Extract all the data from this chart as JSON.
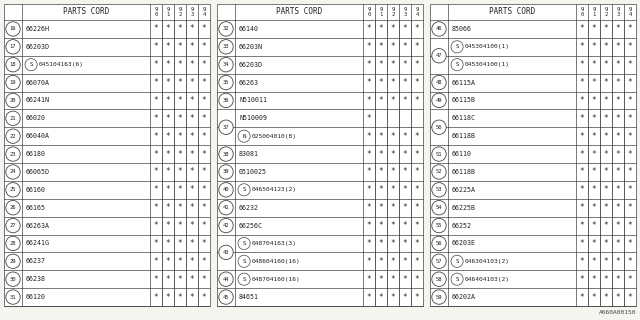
{
  "bg_color": "#f5f5f0",
  "border_color": "#555555",
  "text_color": "#222222",
  "watermark": "A660A00150",
  "col_headers": [
    "9\n0",
    "9\n1",
    "9\n2",
    "9\n3",
    "9\n4"
  ],
  "tables": [
    {
      "rows": [
        {
          "num": "16",
          "part": "66226H",
          "special": null,
          "stars": [
            1,
            1,
            1,
            1,
            1
          ]
        },
        {
          "num": "17",
          "part": "66203D",
          "special": null,
          "stars": [
            1,
            1,
            1,
            1,
            1
          ]
        },
        {
          "num": "18",
          "part": "045104163(6)",
          "special": "S",
          "stars": [
            1,
            1,
            1,
            1,
            1
          ]
        },
        {
          "num": "19",
          "part": "66070A",
          "special": null,
          "stars": [
            1,
            1,
            1,
            1,
            1
          ]
        },
        {
          "num": "20",
          "part": "66241N",
          "special": null,
          "stars": [
            1,
            1,
            1,
            1,
            1
          ]
        },
        {
          "num": "21",
          "part": "66020",
          "special": null,
          "stars": [
            1,
            1,
            1,
            1,
            1
          ]
        },
        {
          "num": "22",
          "part": "66040A",
          "special": null,
          "stars": [
            1,
            1,
            1,
            1,
            1
          ]
        },
        {
          "num": "23",
          "part": "66180",
          "special": null,
          "stars": [
            1,
            1,
            1,
            1,
            1
          ]
        },
        {
          "num": "24",
          "part": "66065D",
          "special": null,
          "stars": [
            1,
            1,
            1,
            1,
            1
          ]
        },
        {
          "num": "25",
          "part": "66160",
          "special": null,
          "stars": [
            1,
            1,
            1,
            1,
            1
          ]
        },
        {
          "num": "26",
          "part": "66165",
          "special": null,
          "stars": [
            1,
            1,
            1,
            1,
            1
          ]
        },
        {
          "num": "27",
          "part": "66263A",
          "special": null,
          "stars": [
            1,
            1,
            1,
            1,
            1
          ]
        },
        {
          "num": "28",
          "part": "66241G",
          "special": null,
          "stars": [
            1,
            1,
            1,
            1,
            1
          ]
        },
        {
          "num": "29",
          "part": "66237",
          "special": null,
          "stars": [
            1,
            1,
            1,
            1,
            1
          ]
        },
        {
          "num": "30",
          "part": "66238",
          "special": null,
          "stars": [
            1,
            1,
            1,
            1,
            1
          ]
        },
        {
          "num": "31",
          "part": "66120",
          "special": null,
          "stars": [
            1,
            1,
            1,
            1,
            1
          ]
        }
      ]
    },
    {
      "rows": [
        {
          "num": "32",
          "part": "66140",
          "special": null,
          "stars": [
            1,
            1,
            1,
            1,
            1
          ],
          "merge_top": false
        },
        {
          "num": "33",
          "part": "66203N",
          "special": null,
          "stars": [
            1,
            1,
            1,
            1,
            1
          ],
          "merge_top": false
        },
        {
          "num": "34",
          "part": "66203D",
          "special": null,
          "stars": [
            1,
            1,
            1,
            1,
            1
          ],
          "merge_top": false
        },
        {
          "num": "35",
          "part": "66263",
          "special": null,
          "stars": [
            1,
            1,
            1,
            1,
            1
          ],
          "merge_top": false
        },
        {
          "num": "36",
          "part": "N510011",
          "special": null,
          "stars": [
            1,
            1,
            1,
            1,
            1
          ],
          "merge_top": false
        },
        {
          "num": "37",
          "part": "N510009",
          "special": null,
          "stars": [
            1,
            0,
            0,
            0,
            0
          ],
          "merge_top": false
        },
        {
          "num": "37",
          "part": "025004010(8)",
          "special": "N",
          "stars": [
            1,
            1,
            1,
            1,
            1
          ],
          "merge_top": true
        },
        {
          "num": "38",
          "part": "83081",
          "special": null,
          "stars": [
            1,
            1,
            1,
            1,
            1
          ],
          "merge_top": false
        },
        {
          "num": "39",
          "part": "0510025",
          "special": null,
          "stars": [
            1,
            1,
            1,
            1,
            1
          ],
          "merge_top": false
        },
        {
          "num": "40",
          "part": "046504123(2)",
          "special": "S",
          "stars": [
            1,
            1,
            1,
            1,
            1
          ],
          "merge_top": false
        },
        {
          "num": "41",
          "part": "66232",
          "special": null,
          "stars": [
            1,
            1,
            1,
            1,
            1
          ],
          "merge_top": false
        },
        {
          "num": "42",
          "part": "66256C",
          "special": null,
          "stars": [
            1,
            1,
            1,
            1,
            1
          ],
          "merge_top": false
        },
        {
          "num": "43",
          "part": "048704163(3)",
          "special": "S",
          "stars": [
            1,
            1,
            1,
            1,
            1
          ],
          "merge_top": false
        },
        {
          "num": "43",
          "part": "048604160(16)",
          "special": "S",
          "stars": [
            1,
            1,
            1,
            1,
            1
          ],
          "merge_top": true
        },
        {
          "num": "44",
          "part": "048704160(16)",
          "special": "S",
          "stars": [
            1,
            1,
            1,
            1,
            1
          ],
          "merge_top": false
        },
        {
          "num": "45",
          "part": "84651",
          "special": null,
          "stars": [
            1,
            1,
            1,
            1,
            1
          ],
          "merge_top": false
        }
      ]
    },
    {
      "rows": [
        {
          "num": "46",
          "part": "85066",
          "special": null,
          "stars": [
            1,
            1,
            1,
            1,
            1
          ],
          "merge_top": false
        },
        {
          "num": "47",
          "part": "045304100(1)",
          "special": "S",
          "stars": [
            1,
            1,
            1,
            1,
            1
          ],
          "merge_top": false
        },
        {
          "num": "47",
          "part": "045304100(1)",
          "special": "S",
          "stars": [
            1,
            1,
            1,
            1,
            1
          ],
          "merge_top": true
        },
        {
          "num": "48",
          "part": "66115A",
          "special": null,
          "stars": [
            1,
            1,
            1,
            1,
            1
          ],
          "merge_top": false
        },
        {
          "num": "49",
          "part": "66115B",
          "special": null,
          "stars": [
            1,
            1,
            1,
            1,
            1
          ],
          "merge_top": false
        },
        {
          "num": "50",
          "part": "66118C",
          "special": null,
          "stars": [
            1,
            1,
            1,
            1,
            1
          ],
          "merge_top": false
        },
        {
          "num": "50",
          "part": "66118B",
          "special": null,
          "stars": [
            1,
            1,
            1,
            1,
            1
          ],
          "merge_top": true
        },
        {
          "num": "51",
          "part": "66110",
          "special": null,
          "stars": [
            1,
            1,
            1,
            1,
            1
          ],
          "merge_top": false
        },
        {
          "num": "52",
          "part": "66118B",
          "special": null,
          "stars": [
            1,
            1,
            1,
            1,
            1
          ],
          "merge_top": false
        },
        {
          "num": "53",
          "part": "66225A",
          "special": null,
          "stars": [
            1,
            1,
            1,
            1,
            1
          ],
          "merge_top": false
        },
        {
          "num": "54",
          "part": "66225B",
          "special": null,
          "stars": [
            1,
            1,
            1,
            1,
            1
          ],
          "merge_top": false
        },
        {
          "num": "55",
          "part": "66252",
          "special": null,
          "stars": [
            1,
            1,
            1,
            1,
            1
          ],
          "merge_top": false
        },
        {
          "num": "56",
          "part": "66203E",
          "special": null,
          "stars": [
            1,
            1,
            1,
            1,
            1
          ],
          "merge_top": false
        },
        {
          "num": "57",
          "part": "046304103(2)",
          "special": "S",
          "stars": [
            1,
            1,
            1,
            1,
            1
          ],
          "merge_top": false
        },
        {
          "num": "58",
          "part": "046404103(2)",
          "special": "S",
          "stars": [
            1,
            1,
            1,
            1,
            1
          ],
          "merge_top": false
        },
        {
          "num": "59",
          "part": "66202A",
          "special": null,
          "stars": [
            1,
            1,
            1,
            1,
            1
          ],
          "merge_top": false
        }
      ]
    }
  ]
}
